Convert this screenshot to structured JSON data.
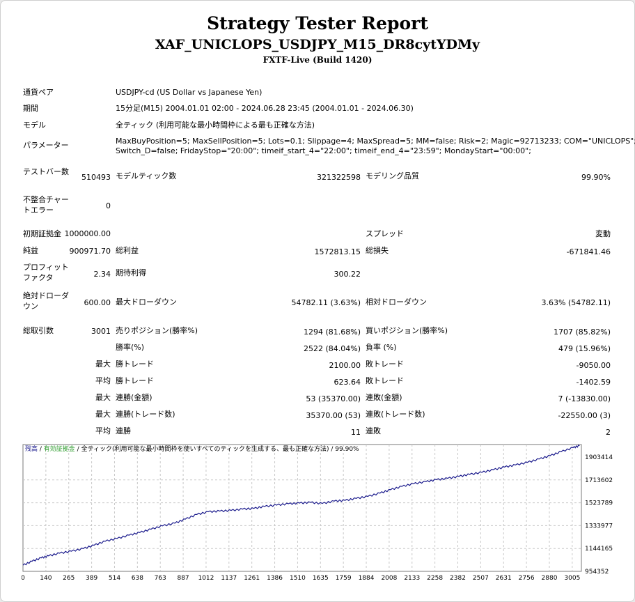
{
  "header": {
    "title": "Strategy Tester Report",
    "subtitle": "XAF_UNICLOPS_USDJPY_M15_DR8cytYDMy",
    "server": "FXTF-Live (Build 1420)"
  },
  "info": {
    "symbol_label": "通貨ペア",
    "symbol": "USDJPY-cd (US Dollar vs Japanese Yen)",
    "period_label": "期間",
    "period": "15分足(M15) 2004.01.01 02:00 - 2024.06.28 23:45 (2004.01.01 - 2024.06.30)",
    "model_label": "モデル",
    "model": "全ティック (利用可能な最小時間枠による最も正確な方法)",
    "params_label": "パラメーター",
    "params_line1": "MaxBuyPosition=5; MaxSellPosition=5; Lots=0.1; Slippage=4; MaxSpread=5; MM=false; Risk=2; Magic=92713233; COM=\"UNICLOPS\";",
    "params_line2": "Switch_D=false; FridayStop=\"20:00\"; timeif_start_4=\"22:00\"; timeif_end_4=\"23:59\"; MondayStart=\"00:00\";"
  },
  "bars": {
    "bars_label": "テストバー数",
    "bars_value": "510493",
    "ticks_label": "モデルティック数",
    "ticks_value": "321322598",
    "quality_label": "モデリング品質",
    "quality_value": "99.90%",
    "mismatch_label": "不整合チャートエラー",
    "mismatch_value": "0"
  },
  "summary": {
    "deposit_label": "初期証拠金",
    "deposit_value": "1000000.00",
    "spread_label": "スプレッド",
    "spread_value": "変動",
    "net_label": "純益",
    "net_value": "900971.70",
    "gross_profit_label": "総利益",
    "gross_profit_value": "1572813.15",
    "gross_loss_label": "総損失",
    "gross_loss_value": "-671841.46",
    "pf_label": "プロフィットファクタ",
    "pf_value": "2.34",
    "expected_label": "期待利得",
    "expected_value": "300.22",
    "abs_dd_label": "絶対ドローダウン",
    "abs_dd_value": "600.00",
    "max_dd_label": "最大ドローダウン",
    "max_dd_value": "54782.11 (3.63%)",
    "rel_dd_label": "相対ドローダウン",
    "rel_dd_value": "3.63% (54782.11)"
  },
  "trades": {
    "total_label": "総取引数",
    "total_value": "3001",
    "short_label": "売りポジション(勝率%)",
    "short_value": "1294 (81.68%)",
    "long_label": "買いポジション(勝率%)",
    "long_value": "1707 (85.82%)",
    "win_label": "勝率(%)",
    "win_value": "2522 (84.04%)",
    "loss_label": "負率 (%)",
    "loss_value": "479 (15.96%)",
    "max_prefix": "最大",
    "avg_prefix": "平均",
    "largest_win_label": "勝トレード",
    "largest_win_value": "2100.00",
    "largest_loss_label": "敗トレード",
    "largest_loss_value": "-9050.00",
    "avg_win_label": "勝トレード",
    "avg_win_value": "623.64",
    "avg_loss_label": "敗トレード",
    "avg_loss_value": "-1402.59",
    "max_consec_win_label": "連勝(金額)",
    "max_consec_win_value": "53 (35370.00)",
    "max_consec_loss_label": "連敗(金額)",
    "max_consec_loss_value": "7 (-13830.00)",
    "max_consec_profit_label": "連勝(トレード数)",
    "max_consec_profit_value": "35370.00 (53)",
    "max_consec_lossamt_label": "連敗(トレード数)",
    "max_consec_lossamt_value": "-22550.00 (3)",
    "avg_consec_win_label": "連勝",
    "avg_consec_win_value": "11",
    "avg_consec_loss_label": "連敗",
    "avg_consec_loss_value": "2"
  },
  "chart_data": {
    "type": "line",
    "legend_balance": "残高",
    "legend_sep1": " / ",
    "legend_equity": "有効証拠金",
    "legend_sep2": " / ",
    "legend_model": "全ティック(利用可能な最小時間枠を使いすべてのティックを生成する、最も正確な方法)",
    "legend_sep3": " / ",
    "legend_quality": "99.90%",
    "x_ticks": [
      "0",
      "140",
      "265",
      "389",
      "514",
      "638",
      "763",
      "887",
      "1012",
      "1137",
      "1261",
      "1386",
      "1510",
      "1635",
      "1759",
      "1884",
      "2008",
      "2133",
      "2258",
      "2382",
      "2507",
      "2631",
      "2756",
      "2880",
      "3005"
    ],
    "y_ticks": [
      "1903414",
      "1713602",
      "1523789",
      "1333977",
      "1144165",
      "954352"
    ],
    "ylim": [
      954352,
      1903414
    ],
    "xlim": [
      0,
      3050
    ],
    "grid": true,
    "colors": {
      "balance": "#1a1a8c",
      "equity": "#2e9c2e",
      "grid": "#c8c8c8",
      "model_text": "#000000"
    },
    "series": [
      {
        "name": "残高",
        "x": [
          0,
          50,
          100,
          140,
          200,
          265,
          330,
          389,
          450,
          514,
          580,
          638,
          700,
          763,
          830,
          887,
          950,
          1012,
          1075,
          1137,
          1200,
          1261,
          1320,
          1386,
          1450,
          1510,
          1570,
          1635,
          1700,
          1759,
          1820,
          1884,
          1950,
          2008,
          2070,
          2133,
          2200,
          2258,
          2320,
          2382,
          2440,
          2507,
          2570,
          2631,
          2690,
          2756,
          2820,
          2880,
          2940,
          3005,
          3040
        ],
        "y": [
          1000000,
          1030000,
          1055000,
          1070000,
          1090000,
          1105000,
          1125000,
          1150000,
          1180000,
          1200000,
          1225000,
          1245000,
          1270000,
          1295000,
          1315000,
          1345000,
          1380000,
          1400000,
          1405000,
          1410000,
          1420000,
          1425000,
          1440000,
          1450000,
          1460000,
          1465000,
          1470000,
          1462000,
          1480000,
          1485000,
          1500000,
          1515000,
          1540000,
          1565000,
          1590000,
          1610000,
          1625000,
          1640000,
          1650000,
          1665000,
          1680000,
          1695000,
          1715000,
          1735000,
          1750000,
          1770000,
          1795000,
          1820000,
          1850000,
          1880000,
          1895000
        ]
      }
    ]
  }
}
